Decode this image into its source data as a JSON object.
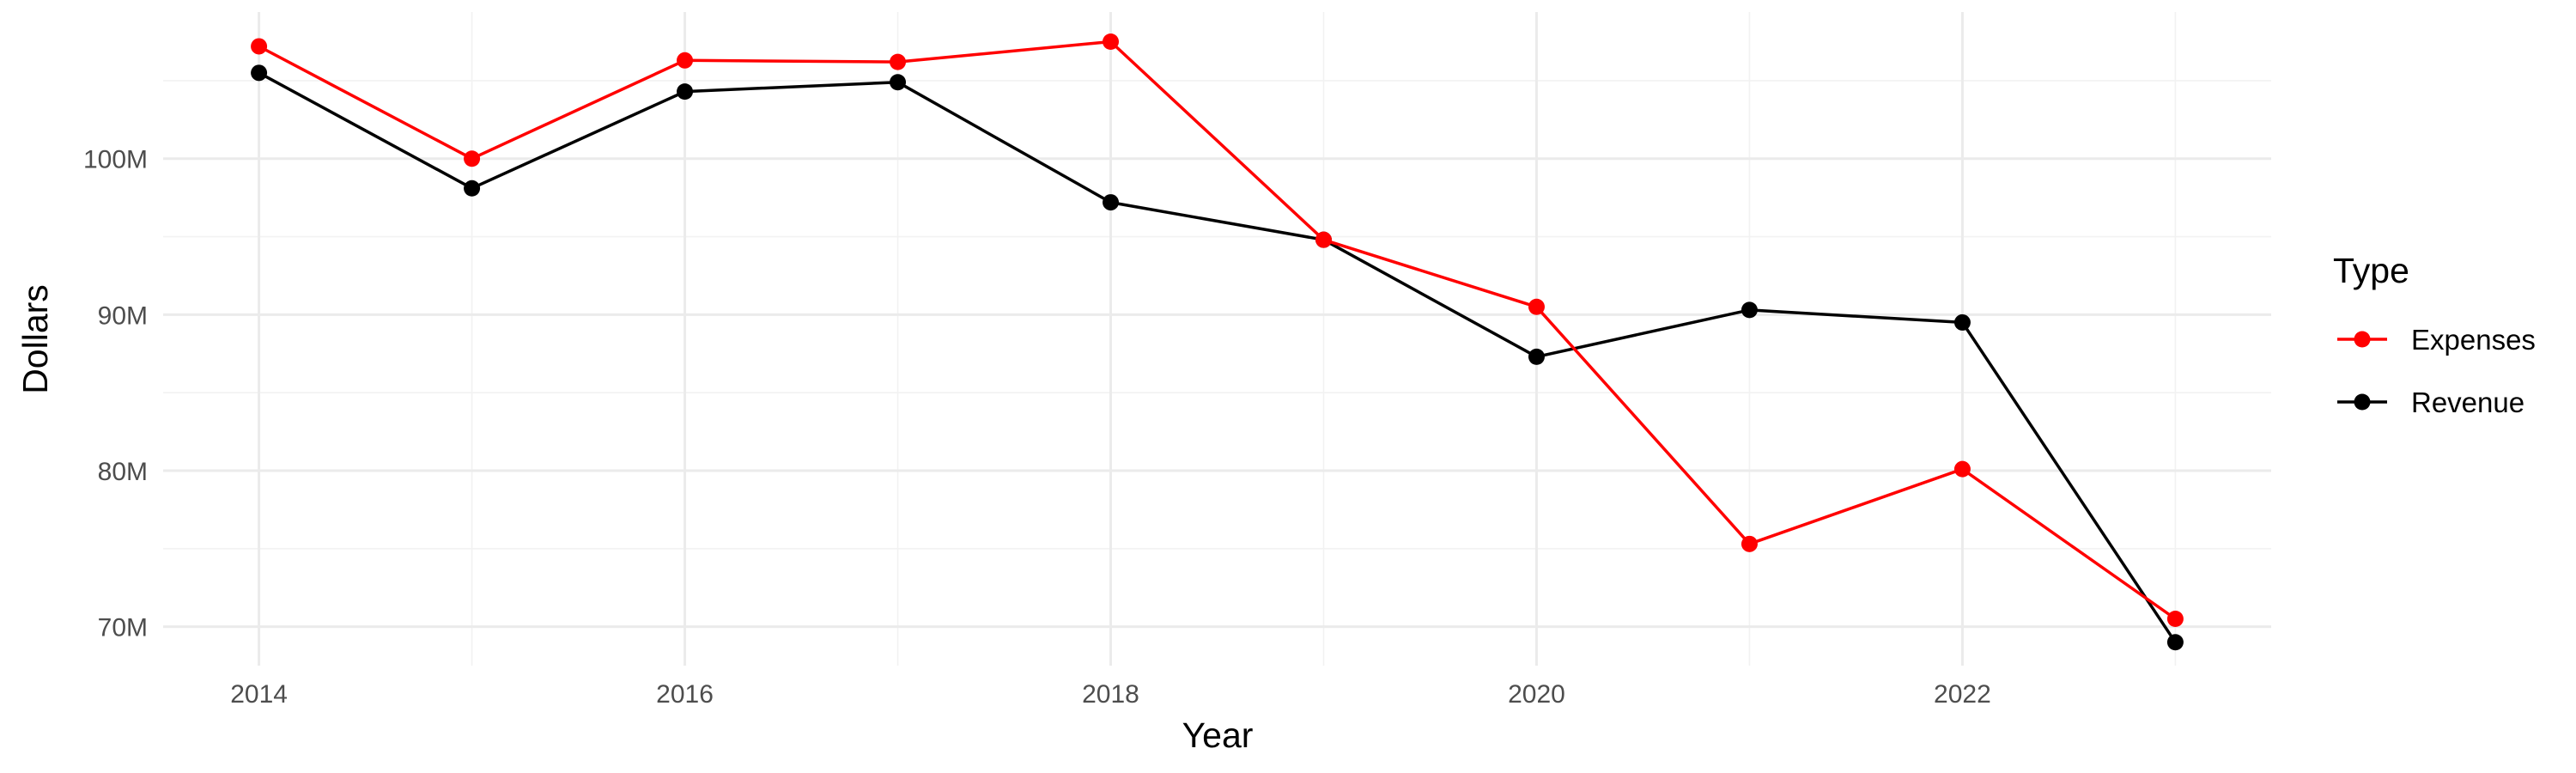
{
  "chart_data": {
    "type": "line",
    "title": "",
    "xlabel": "Year",
    "ylabel": "Dollars",
    "x": [
      2014,
      2015,
      2016,
      2017,
      2018,
      2019,
      2020,
      2021,
      2022,
      2023
    ],
    "x_ticks": [
      2014,
      2016,
      2018,
      2020,
      2022
    ],
    "xlim": [
      2013.55,
      2023.45
    ],
    "y_ticks": [
      70000000,
      80000000,
      90000000,
      100000000
    ],
    "y_tick_labels": [
      "70M",
      "80M",
      "90M",
      "100M"
    ],
    "ylim": [
      67500000,
      109400000
    ],
    "grid": true,
    "legend_title": "Type",
    "legend_position": "right",
    "series": [
      {
        "name": "Expenses",
        "color": "#ff0000",
        "values": [
          107200000,
          100000000,
          106300000,
          106200000,
          107500000,
          94800000,
          90500000,
          75300000,
          80100000,
          70500000
        ]
      },
      {
        "name": "Revenue",
        "color": "#000000",
        "values": [
          105500000,
          98100000,
          104300000,
          104900000,
          97200000,
          94800000,
          87300000,
          90300000,
          89500000,
          69000000
        ]
      }
    ]
  }
}
